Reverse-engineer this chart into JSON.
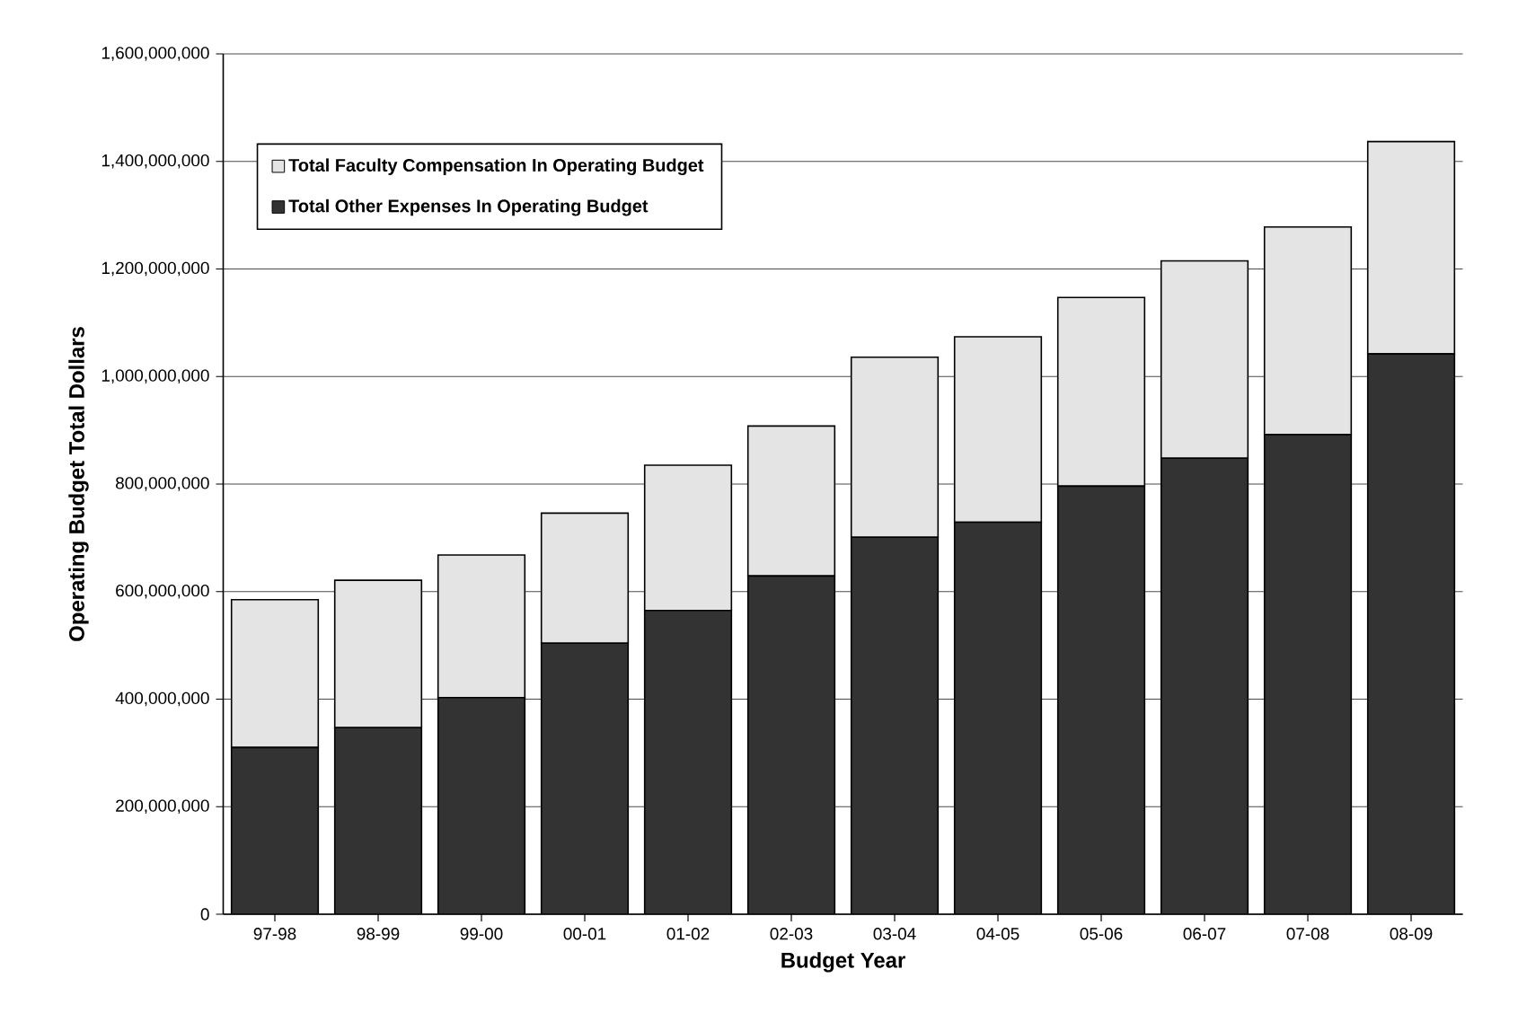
{
  "chart_data": {
    "type": "bar",
    "stacked": true,
    "xlabel": "Budget Year",
    "ylabel": "Operating Budget Total Dollars",
    "categories": [
      "97-98",
      "98-99",
      "99-00",
      "00-01",
      "01-02",
      "02-03",
      "03-04",
      "04-05",
      "05-06",
      "06-07",
      "07-08",
      "08-09"
    ],
    "series": [
      {
        "name": "Total Other Expenses In Operating Budget",
        "color": "#333333",
        "values": [
          310000000,
          347000000,
          403000000,
          504000000,
          565000000,
          629000000,
          701000000,
          729000000,
          796000000,
          848000000,
          892000000,
          1042000000
        ]
      },
      {
        "name": "Total Faculty Compensation In Operating Budget",
        "color": "#e4e4e4",
        "values": [
          275000000,
          274000000,
          265000000,
          242000000,
          270000000,
          279000000,
          335000000,
          345000000,
          351000000,
          367000000,
          386000000,
          395000000
        ]
      }
    ],
    "ylim": [
      0,
      1600000000
    ],
    "yticks": [
      0,
      {
        "value": 200000000,
        "label": "200,000,000"
      },
      {
        "value": 400000000,
        "label": "400,000,000"
      },
      {
        "value": 600000000,
        "label": "600,000,000"
      },
      {
        "value": 800000000,
        "label": "800,000,000"
      },
      {
        "value": 1000000000,
        "label": "1,000,000,000"
      },
      {
        "value": 1200000000,
        "label": "1,200,000,000"
      },
      {
        "value": 1400000000,
        "label": "1,400,000,000"
      },
      {
        "value": 1600000000,
        "label": "1,600,000,000"
      }
    ],
    "grid": "y",
    "legend": "top left"
  }
}
